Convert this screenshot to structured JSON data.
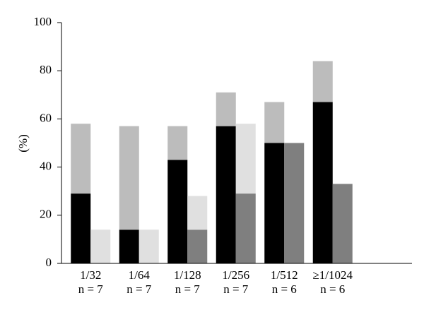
{
  "chart_data": {
    "type": "stacked_grouped_bar",
    "y_label": "(%)",
    "categories": [
      "1/32",
      "1/64",
      "1/128",
      "1/256",
      "1/512",
      "≥1/1024"
    ],
    "category_sublabels": [
      "n = 7",
      "n = 7",
      "n = 7",
      "n = 7",
      "n = 6",
      "n = 6"
    ],
    "series": [
      {
        "stack": "left",
        "color": "#000000",
        "values": [
          29,
          14,
          43,
          57,
          50,
          67
        ]
      },
      {
        "stack": "left",
        "color": "#bcbcbc",
        "values": [
          29,
          43,
          14,
          14,
          17,
          17
        ]
      },
      {
        "stack": "right",
        "color": "#7f7f7f",
        "values": [
          0,
          0,
          14,
          29,
          50,
          33
        ]
      },
      {
        "stack": "right",
        "color": "#e0e0e0",
        "values": [
          14,
          14,
          14,
          29,
          0,
          0
        ]
      }
    ],
    "ylim": [
      0,
      100
    ],
    "yticks": [
      0,
      20,
      40,
      60,
      80,
      100
    ]
  }
}
